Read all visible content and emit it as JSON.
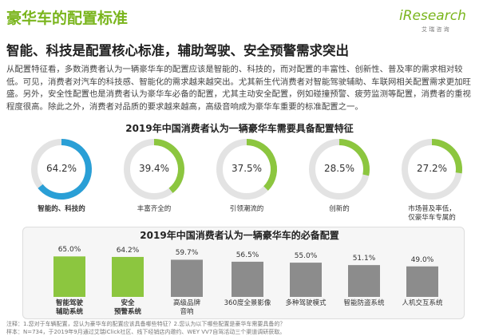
{
  "header": {
    "title": "豪华车的配置标准",
    "subtitle": "智能、科技是配置核心标准，辅助驾驶、安全预警需求突出",
    "logo": "iResearch",
    "logo_sub": "艾 瑞 咨 询"
  },
  "intro": "从配置特征看，多数消费者认为一辆豪华车的配置应该是智能的、科技的，而对配置的丰富性、创新性、普及率的需求相对较低。可见，消费者对汽车的科技感、智能化的需求越来越突出。尤其新生代消费者对智能驾驶辅助、车联网相关配置需求更加旺盛。另外，安全性配置也是消费者认为豪华车必备的配置，尤其主动安全配置，例如碰撞预警、疲劳监测等配置，消费者的重视程度很高。除此之外，消费者对品质的要求越来越高，高级音响成为豪华车重要的标准配置之一。",
  "chart_data": [
    {
      "type": "donut",
      "title": "2019年中国消费者认为一辆豪华车需要具备配置特征",
      "categories": [
        "智能的、科技的",
        "丰富齐全的",
        "引领潮流的",
        "创新的",
        "市场普及率低，\n仅豪华车专属的"
      ],
      "values": [
        64.2,
        39.4,
        37.5,
        28.5,
        27.2
      ],
      "value_labels": [
        "64.2%",
        "39.4%",
        "37.5%",
        "28.5%",
        "27.2%"
      ],
      "colors": [
        "#2a9fd6",
        "#8cc63f",
        "#8cc63f",
        "#8cc63f",
        "#8cc63f"
      ],
      "emphasis": [
        true,
        false,
        false,
        false,
        false
      ]
    },
    {
      "type": "bar",
      "title": "2019年中国消费者认为一辆豪华车的必备配置",
      "categories": [
        "智能驾驶\n辅助系统",
        "安全\n预警系统",
        "高级品牌\n音响",
        "360度全景影像",
        "多种驾驶模式",
        "智能防盗系统",
        "人机交互系统"
      ],
      "values": [
        65.0,
        64.2,
        59.7,
        56.5,
        55.0,
        51.1,
        49.0
      ],
      "value_labels": [
        "65.0%",
        "64.2%",
        "59.7%",
        "56.5%",
        "55.0%",
        "51.1%",
        "49.0%"
      ],
      "colors": [
        "#8cc63f",
        "#8cc63f",
        "#8c8c8c",
        "#8c8c8c",
        "#8c8c8c",
        "#8c8c8c",
        "#8c8c8c"
      ],
      "emphasis": [
        true,
        true,
        false,
        false,
        false,
        false,
        false
      ]
    }
  ],
  "notes": [
    "注释：1.您对于车辆配置，您认为豪华车的配置应该具备哪些特征？2.您认为以下哪些配置是豪华车需要具备的？",
    "样本：N=734，于2019年9月通过艾瑞iClick社区、线下经销店内邀约、WEY VV7自驾活动三个渠道调研获取。"
  ]
}
